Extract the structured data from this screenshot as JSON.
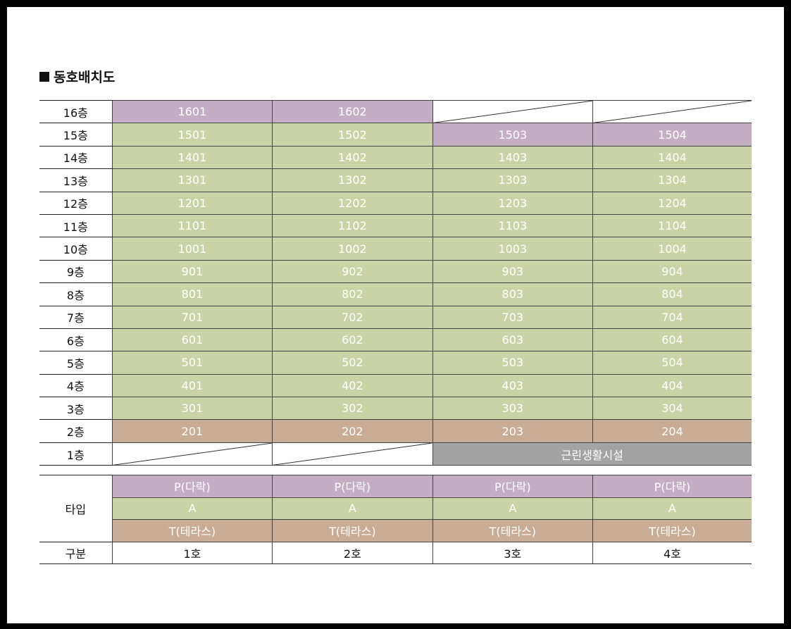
{
  "title": "동호배치도",
  "floors": [
    {
      "label": "16층",
      "units": [
        {
          "v": "1601",
          "t": "P"
        },
        {
          "v": "1602",
          "t": "P"
        },
        {
          "v": "",
          "t": "empty"
        },
        {
          "v": "",
          "t": "empty"
        }
      ]
    },
    {
      "label": "15층",
      "units": [
        {
          "v": "1501",
          "t": "A"
        },
        {
          "v": "1502",
          "t": "A"
        },
        {
          "v": "1503",
          "t": "P"
        },
        {
          "v": "1504",
          "t": "P"
        }
      ]
    },
    {
      "label": "14층",
      "units": [
        {
          "v": "1401",
          "t": "A"
        },
        {
          "v": "1402",
          "t": "A"
        },
        {
          "v": "1403",
          "t": "A"
        },
        {
          "v": "1404",
          "t": "A"
        }
      ]
    },
    {
      "label": "13층",
      "units": [
        {
          "v": "1301",
          "t": "A"
        },
        {
          "v": "1302",
          "t": "A"
        },
        {
          "v": "1303",
          "t": "A"
        },
        {
          "v": "1304",
          "t": "A"
        }
      ]
    },
    {
      "label": "12층",
      "units": [
        {
          "v": "1201",
          "t": "A"
        },
        {
          "v": "1202",
          "t": "A"
        },
        {
          "v": "1203",
          "t": "A"
        },
        {
          "v": "1204",
          "t": "A"
        }
      ]
    },
    {
      "label": "11층",
      "units": [
        {
          "v": "1101",
          "t": "A"
        },
        {
          "v": "1102",
          "t": "A"
        },
        {
          "v": "1103",
          "t": "A"
        },
        {
          "v": "1104",
          "t": "A"
        }
      ]
    },
    {
      "label": "10층",
      "units": [
        {
          "v": "1001",
          "t": "A"
        },
        {
          "v": "1002",
          "t": "A"
        },
        {
          "v": "1003",
          "t": "A"
        },
        {
          "v": "1004",
          "t": "A"
        }
      ]
    },
    {
      "label": "9층",
      "units": [
        {
          "v": "901",
          "t": "A"
        },
        {
          "v": "902",
          "t": "A"
        },
        {
          "v": "903",
          "t": "A"
        },
        {
          "v": "904",
          "t": "A"
        }
      ]
    },
    {
      "label": "8층",
      "units": [
        {
          "v": "801",
          "t": "A"
        },
        {
          "v": "802",
          "t": "A"
        },
        {
          "v": "803",
          "t": "A"
        },
        {
          "v": "804",
          "t": "A"
        }
      ]
    },
    {
      "label": "7층",
      "units": [
        {
          "v": "701",
          "t": "A"
        },
        {
          "v": "702",
          "t": "A"
        },
        {
          "v": "703",
          "t": "A"
        },
        {
          "v": "704",
          "t": "A"
        }
      ]
    },
    {
      "label": "6층",
      "units": [
        {
          "v": "601",
          "t": "A"
        },
        {
          "v": "602",
          "t": "A"
        },
        {
          "v": "603",
          "t": "A"
        },
        {
          "v": "604",
          "t": "A"
        }
      ]
    },
    {
      "label": "5층",
      "units": [
        {
          "v": "501",
          "t": "A"
        },
        {
          "v": "502",
          "t": "A"
        },
        {
          "v": "503",
          "t": "A"
        },
        {
          "v": "504",
          "t": "A"
        }
      ]
    },
    {
      "label": "4층",
      "units": [
        {
          "v": "401",
          "t": "A"
        },
        {
          "v": "402",
          "t": "A"
        },
        {
          "v": "403",
          "t": "A"
        },
        {
          "v": "404",
          "t": "A"
        }
      ]
    },
    {
      "label": "3층",
      "units": [
        {
          "v": "301",
          "t": "A"
        },
        {
          "v": "302",
          "t": "A"
        },
        {
          "v": "303",
          "t": "A"
        },
        {
          "v": "304",
          "t": "A"
        }
      ]
    },
    {
      "label": "2층",
      "units": [
        {
          "v": "201",
          "t": "T"
        },
        {
          "v": "202",
          "t": "T"
        },
        {
          "v": "203",
          "t": "T"
        },
        {
          "v": "204",
          "t": "T"
        }
      ]
    },
    {
      "label": "1층",
      "units": [
        {
          "v": "",
          "t": "empty"
        },
        {
          "v": "",
          "t": "empty"
        },
        {
          "v": "근린생활시설",
          "t": "shop",
          "span": 2
        }
      ]
    }
  ],
  "type_section": {
    "label": "타입",
    "rows": [
      {
        "t": "P",
        "values": [
          "P(다락)",
          "P(다락)",
          "P(다락)",
          "P(다락)"
        ]
      },
      {
        "t": "A",
        "values": [
          "A",
          "A",
          "A",
          "A"
        ]
      },
      {
        "t": "T",
        "values": [
          "T(테라스)",
          "T(테라스)",
          "T(테라스)",
          "T(테라스)"
        ]
      }
    ]
  },
  "division": {
    "label": "구분",
    "values": [
      "1호",
      "2호",
      "3호",
      "4호"
    ]
  },
  "colors": {
    "P": "#c5aec4",
    "A": "#c9d3a6",
    "T": "#c8ac96",
    "shop": "#a3a3a3"
  }
}
